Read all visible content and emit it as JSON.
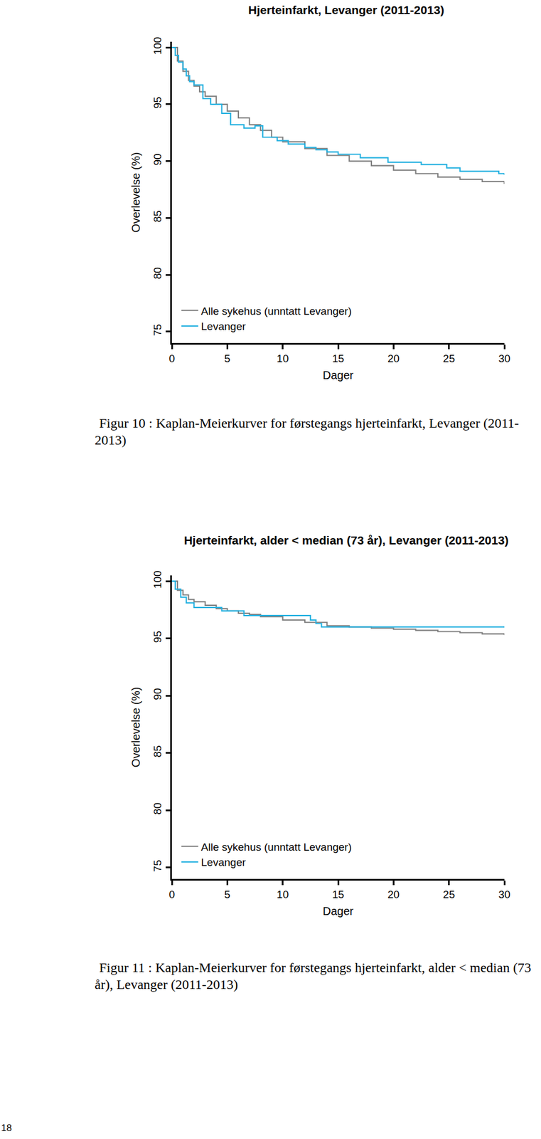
{
  "chart_data": [
    {
      "type": "line",
      "title": "Hjerteinfarkt, Levanger (2011-2013)",
      "x_label": "Dager",
      "y_label": "Overlevelse (%)",
      "line_style": "step",
      "grid": false,
      "legend": "lower left",
      "xlim": [
        0,
        30
      ],
      "xticks": [
        0,
        5,
        10,
        15,
        20,
        25,
        30
      ],
      "ylim": [
        74,
        100.5
      ],
      "yticks": [
        75,
        80,
        85,
        90,
        95,
        100
      ],
      "series": [
        {
          "name": "Alle sykehus (unntatt Levanger)",
          "color": "#808080",
          "x": [
            0,
            0.5,
            1,
            1.5,
            2,
            2.5,
            3,
            4,
            5,
            6,
            7,
            8,
            9,
            10,
            12,
            14,
            16,
            18,
            20,
            22,
            24,
            26,
            28,
            30
          ],
          "values": [
            100,
            98.8,
            97.9,
            97.1,
            96.6,
            96.1,
            95.7,
            95.0,
            94.4,
            93.8,
            93.2,
            92.7,
            92.1,
            91.7,
            91.1,
            90.5,
            90.0,
            89.6,
            89.2,
            88.9,
            88.6,
            88.4,
            88.2,
            88.0
          ]
        },
        {
          "name": "Levanger",
          "color": "#22b0e0",
          "x": [
            0,
            0.3,
            0.6,
            1,
            1.3,
            1.6,
            2,
            2.8,
            3.5,
            4.5,
            5.3,
            6.5,
            7.5,
            8.2,
            9.5,
            10.5,
            12,
            13,
            14,
            15,
            17,
            19.5,
            22.5,
            24.8,
            26,
            29.5,
            30
          ],
          "values": [
            100,
            99.3,
            98.7,
            98.1,
            97.5,
            97.0,
            96.7,
            95.5,
            95.0,
            94.2,
            93.2,
            92.9,
            93.1,
            92.1,
            91.8,
            91.5,
            91.2,
            91.0,
            90.8,
            90.6,
            90.3,
            89.9,
            89.7,
            89.4,
            89.1,
            88.9,
            88.8
          ]
        }
      ]
    },
    {
      "type": "line",
      "title": "Hjerteinfarkt, alder < median (73 år), Levanger (2011-2013)",
      "x_label": "Dager",
      "y_label": "Overlevelse (%)",
      "line_style": "step",
      "grid": false,
      "legend": "lower left",
      "xlim": [
        0,
        30
      ],
      "xticks": [
        0,
        5,
        10,
        15,
        20,
        25,
        30
      ],
      "ylim": [
        74,
        100.5
      ],
      "yticks": [
        75,
        80,
        85,
        90,
        95,
        100
      ],
      "series": [
        {
          "name": "Alle sykehus (unntatt Levanger)",
          "color": "#808080",
          "x": [
            0,
            0.5,
            1,
            1.5,
            2,
            3,
            4,
            5,
            6,
            7,
            8,
            10,
            12,
            14,
            16,
            18,
            20,
            22,
            24,
            26,
            28,
            30
          ],
          "values": [
            100,
            99.2,
            98.8,
            98.4,
            98.2,
            97.9,
            97.6,
            97.4,
            97.2,
            97.1,
            96.9,
            96.6,
            96.4,
            96.1,
            96.0,
            95.9,
            95.8,
            95.7,
            95.6,
            95.5,
            95.4,
            95.3
          ]
        },
        {
          "name": "Levanger",
          "color": "#22b0e0",
          "x": [
            0,
            0.3,
            0.8,
            1.3,
            2,
            4.5,
            6.5,
            12.5,
            13,
            13.5,
            30
          ],
          "values": [
            100,
            99.3,
            98.6,
            98.1,
            97.7,
            97.4,
            97.0,
            96.6,
            96.3,
            96.0,
            96.0
          ]
        }
      ]
    }
  ],
  "captions": [
    "Figur 10 : Kaplan-Meierkurver for førstegangs hjerteinfarkt, Levanger (2011-2013)",
    "Figur 11 : Kaplan-Meierkurver for førstegangs hjerteinfarkt, alder < median (73 år), Levanger (2011-2013)"
  ],
  "page_number": 18
}
